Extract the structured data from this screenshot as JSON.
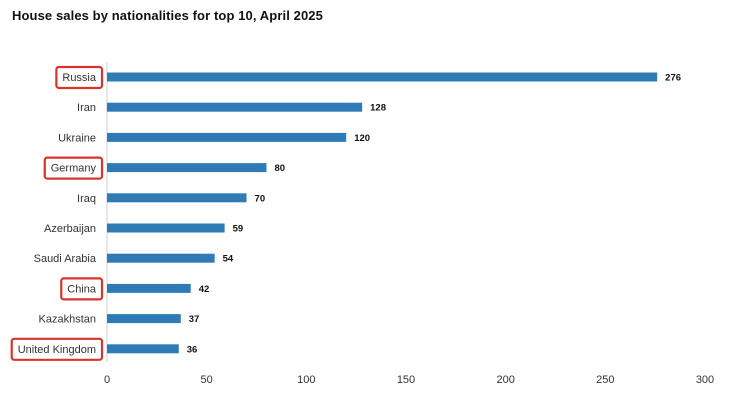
{
  "chart_data": {
    "type": "bar",
    "orientation": "horizontal",
    "title": "House sales by nationalities for top 10, April 2025",
    "xlabel": "",
    "ylabel": "",
    "categories": [
      "Russia",
      "Iran",
      "Ukraine",
      "Germany",
      "Iraq",
      "Azerbaijan",
      "Saudi Arabia",
      "China",
      "Kazakhstan",
      "United Kingdom"
    ],
    "values": [
      276,
      128,
      120,
      80,
      70,
      59,
      54,
      42,
      37,
      36
    ],
    "xlim": [
      0,
      300
    ],
    "xticks": [
      0,
      50,
      100,
      150,
      200,
      250,
      300
    ],
    "highlighted_categories": [
      "Russia",
      "Germany",
      "China",
      "United Kingdom"
    ],
    "grid": false,
    "bar_color": "#2E7BB6",
    "highlight_color": "#D9342B"
  }
}
